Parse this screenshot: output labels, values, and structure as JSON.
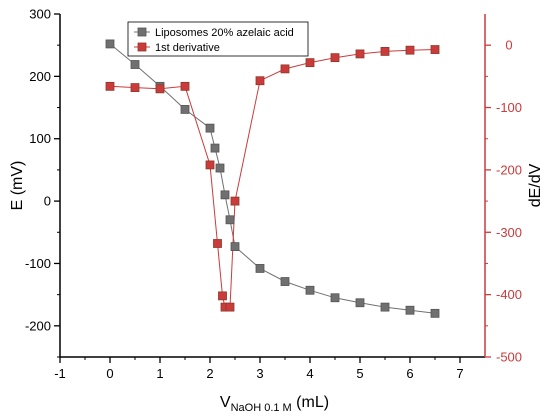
{
  "chart_data": {
    "type": "scatter",
    "x": [
      0,
      0.5,
      1,
      1.5,
      2,
      2.1,
      2.2,
      2.3,
      2.4,
      2.5,
      3,
      3.5,
      4,
      4.5,
      5,
      5.5,
      6,
      6.5
    ],
    "series": [
      {
        "name": "Liposomes 20% azelaic acid",
        "axis": "left",
        "color": "#707070",
        "marker": "square",
        "line": true,
        "values": [
          252,
          219,
          184,
          147,
          117,
          85,
          53,
          10,
          -30,
          -73,
          -108,
          -129,
          -143,
          -155,
          -163,
          -170,
          -175,
          -180
        ]
      },
      {
        "name": "1st derivative",
        "axis": "right",
        "color": "#cc3b3b",
        "marker": "square",
        "line": true,
        "x": [
          0,
          0.5,
          1,
          1.5,
          2,
          2.15,
          2.25,
          2.3,
          2.4,
          2.5,
          3,
          3.5,
          4,
          4.5,
          5,
          5.5,
          6,
          6.5
        ],
        "values": [
          -66,
          -68,
          -70,
          -66,
          -192,
          -318,
          -402,
          -420,
          -420,
          -250,
          -57,
          -38,
          -28,
          -20,
          -14,
          -10,
          -8,
          -7
        ]
      }
    ],
    "xlim": [
      -1,
      7.5
    ],
    "ylim": [
      -250,
      300
    ],
    "y2lim": [
      -500,
      50
    ],
    "xticks": [
      -1,
      0,
      1,
      2,
      3,
      4,
      5,
      6,
      7
    ],
    "yticks": [
      -200,
      -100,
      0,
      100,
      200,
      300
    ],
    "y2ticks": [
      -500,
      -400,
      -300,
      -200,
      -100,
      0
    ],
    "xlabel": {
      "main": "V",
      "sub": "NaOH 0.1 M",
      "unit": " (mL)"
    },
    "ylabel": "E (mV)",
    "y2label": "dE/dV",
    "axis_colors": {
      "left": "#000000",
      "right": "#cc3b3b"
    },
    "grid": false,
    "legend": "top-left"
  }
}
